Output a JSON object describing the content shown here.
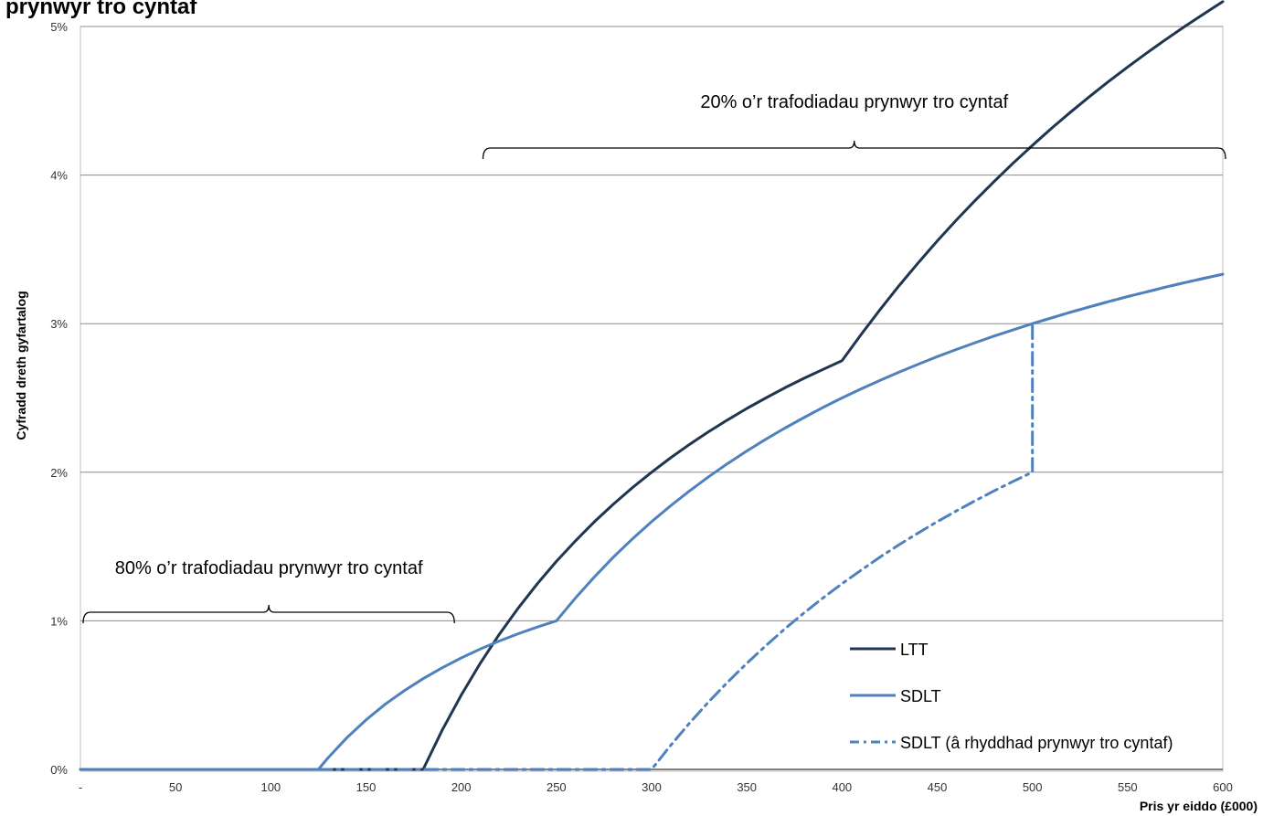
{
  "chart_data": {
    "type": "line",
    "title": "prynwyr tro cyntaf",
    "xlabel": "Pris yr eiddo (£000)",
    "ylabel": "Cyfradd dreth gyfartalog",
    "xlim": [
      0,
      600
    ],
    "ylim": [
      0,
      5
    ],
    "x_ticks": [
      {
        "value": 0,
        "label": "-"
      },
      {
        "value": 50,
        "label": "50"
      },
      {
        "value": 100,
        "label": "100"
      },
      {
        "value": 150,
        "label": "150"
      },
      {
        "value": 200,
        "label": "200"
      },
      {
        "value": 250,
        "label": "250"
      },
      {
        "value": 300,
        "label": "300"
      },
      {
        "value": 350,
        "label": "350"
      },
      {
        "value": 400,
        "label": "400"
      },
      {
        "value": 450,
        "label": "450"
      },
      {
        "value": 500,
        "label": "500"
      },
      {
        "value": 550,
        "label": "550"
      },
      {
        "value": 600,
        "label": "600"
      }
    ],
    "y_ticks": [
      {
        "value": 0,
        "label": "0%"
      },
      {
        "value": 1,
        "label": "1%"
      },
      {
        "value": 2,
        "label": "2%"
      },
      {
        "value": 3,
        "label": "3%"
      },
      {
        "value": 4,
        "label": "4%"
      },
      {
        "value": 5,
        "label": "5%"
      }
    ],
    "grid": "horizontal",
    "legend_position": "bottom-right",
    "series": [
      {
        "name": "LTT",
        "color": "#1f3552",
        "style": "solid",
        "x": [
          0,
          180,
          190,
          200,
          210,
          220,
          230,
          240,
          250,
          260,
          270,
          280,
          290,
          300,
          310,
          320,
          330,
          340,
          350,
          360,
          370,
          380,
          390,
          400,
          410,
          420,
          430,
          440,
          450,
          460,
          470,
          480,
          490,
          500,
          510,
          520,
          530,
          540,
          550,
          560,
          570,
          580,
          590,
          600
        ],
        "y": [
          0,
          0,
          0.263,
          0.5,
          0.714,
          0.909,
          1.087,
          1.25,
          1.4,
          1.538,
          1.667,
          1.786,
          1.897,
          2.0,
          2.097,
          2.188,
          2.273,
          2.353,
          2.429,
          2.5,
          2.568,
          2.632,
          2.692,
          2.75,
          2.927,
          3.095,
          3.256,
          3.409,
          3.556,
          3.696,
          3.83,
          3.958,
          4.082,
          4.2,
          4.314,
          4.423,
          4.528,
          4.63,
          4.727,
          4.821,
          4.912,
          5.0,
          5.085,
          5.167
        ]
      },
      {
        "name": "SDLT",
        "color": "#4f81bd",
        "style": "solid",
        "x": [
          0,
          125,
          130,
          140,
          150,
          160,
          170,
          180,
          190,
          200,
          210,
          220,
          230,
          240,
          250,
          260,
          270,
          280,
          290,
          300,
          310,
          320,
          330,
          340,
          350,
          360,
          370,
          380,
          390,
          400,
          410,
          420,
          430,
          440,
          450,
          460,
          470,
          480,
          490,
          500,
          510,
          520,
          530,
          540,
          550,
          560,
          570,
          580,
          590,
          600
        ],
        "y": [
          0,
          0,
          0.077,
          0.214,
          0.333,
          0.438,
          0.529,
          0.611,
          0.684,
          0.75,
          0.81,
          0.864,
          0.913,
          0.958,
          1.0,
          1.154,
          1.296,
          1.429,
          1.552,
          1.667,
          1.774,
          1.875,
          1.97,
          2.059,
          2.143,
          2.222,
          2.297,
          2.368,
          2.436,
          2.5,
          2.561,
          2.619,
          2.674,
          2.727,
          2.778,
          2.826,
          2.872,
          2.917,
          2.959,
          3.0,
          3.039,
          3.077,
          3.113,
          3.148,
          3.182,
          3.214,
          3.246,
          3.276,
          3.305,
          3.333
        ]
      },
      {
        "name": "SDLT (â rhyddhad prynwyr tro cyntaf)",
        "color": "#4f81bd",
        "style": "dash-dot",
        "x": [
          0,
          300,
          310,
          320,
          330,
          340,
          350,
          360,
          370,
          380,
          390,
          400,
          410,
          420,
          430,
          440,
          450,
          460,
          470,
          480,
          490,
          500,
          500.01,
          510,
          520,
          530,
          540,
          550,
          560,
          570,
          580,
          590,
          600
        ],
        "y": [
          0,
          0,
          0.161,
          0.313,
          0.455,
          0.588,
          0.714,
          0.833,
          0.946,
          1.053,
          1.154,
          1.25,
          1.341,
          1.429,
          1.512,
          1.591,
          1.667,
          1.739,
          1.809,
          1.875,
          1.939,
          2.0,
          3.0,
          3.039,
          3.077,
          3.113,
          3.148,
          3.182,
          3.214,
          3.246,
          3.276,
          3.305,
          3.333
        ]
      }
    ],
    "annotations": [
      {
        "text": "80% o’r trafodiadau prynwyr tro cyntaf",
        "x_range": [
          0,
          195
        ]
      },
      {
        "text": "20% o’r trafodiadau prynwyr tro cyntaf",
        "x_range": [
          210,
          600
        ]
      }
    ]
  }
}
